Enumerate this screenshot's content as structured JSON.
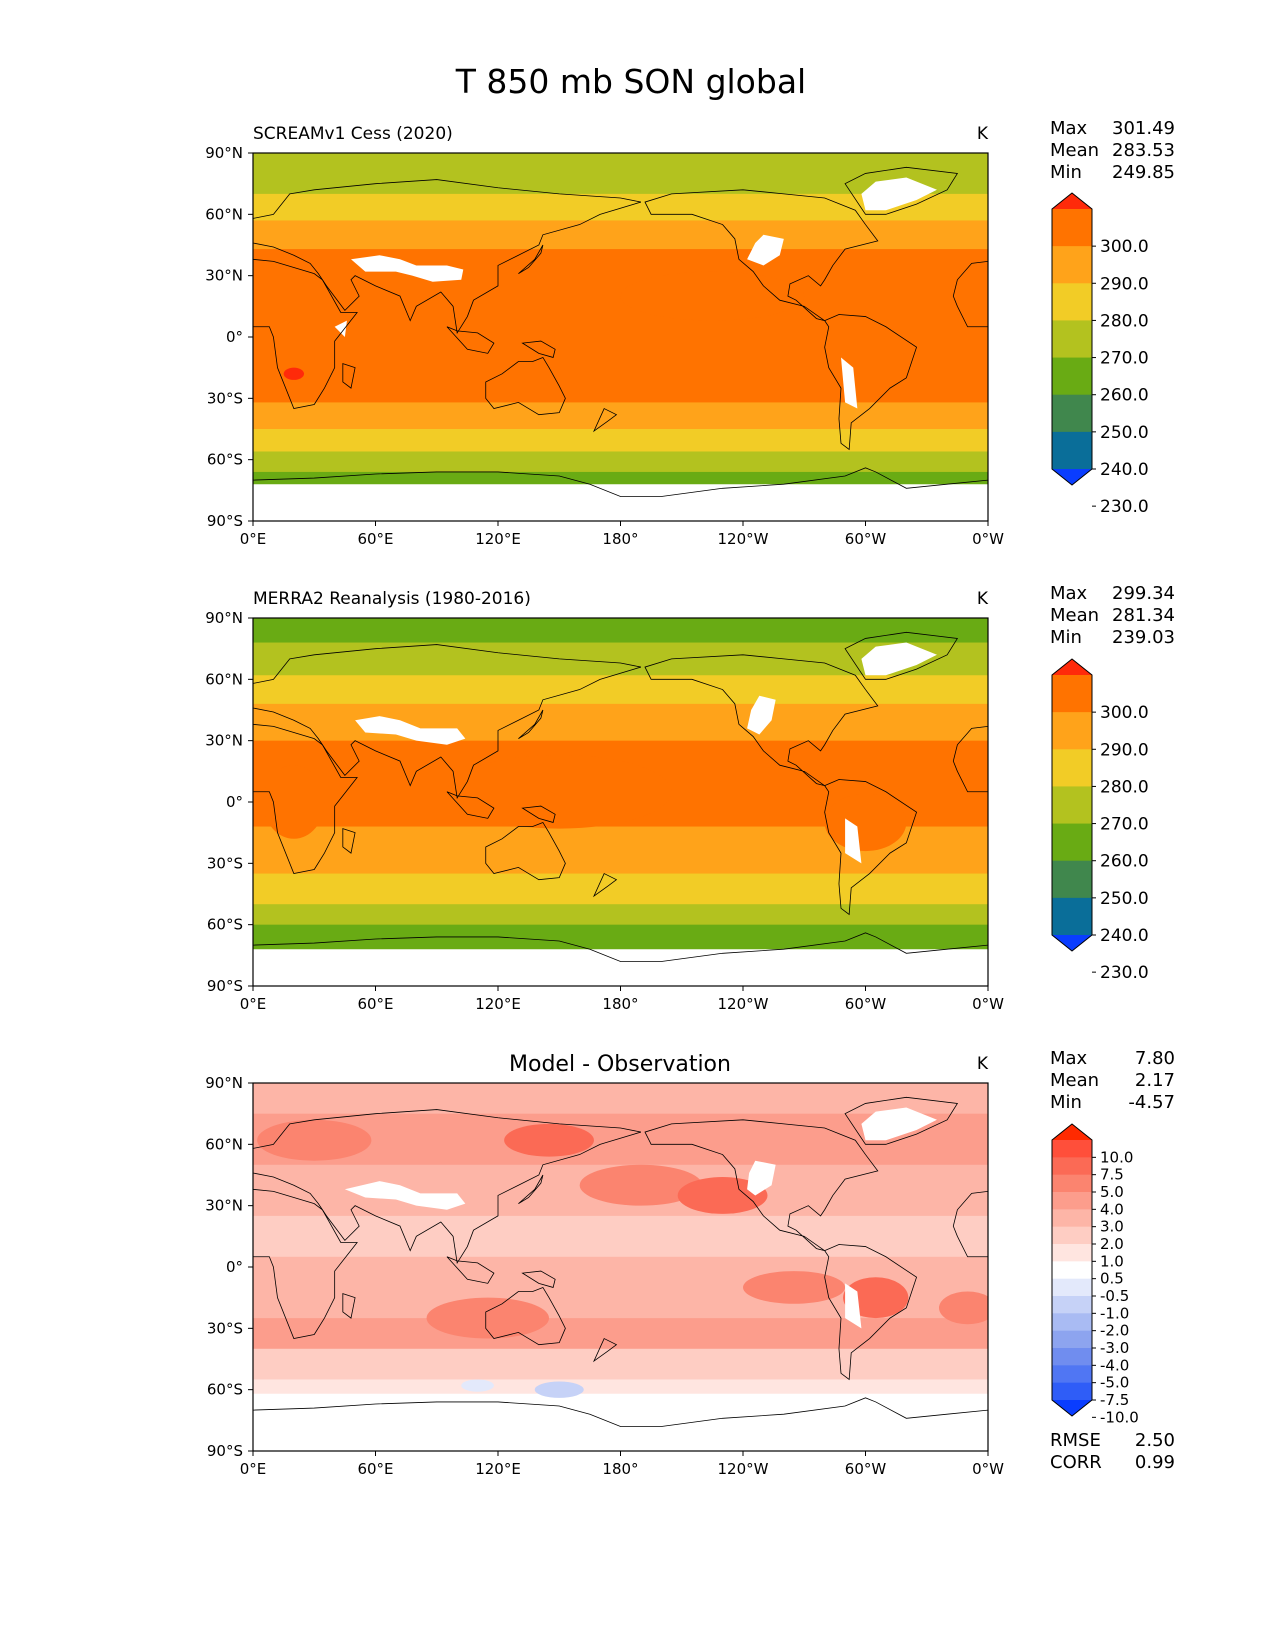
{
  "figure": {
    "title": "T 850 mb SON global"
  },
  "axes": {
    "lat_ticks": [
      "90°N",
      "60°N",
      "30°N",
      "0°",
      "30°S",
      "60°S",
      "90°S"
    ],
    "lon_ticks": [
      "0°E",
      "60°E",
      "120°E",
      "180°",
      "120°W",
      "60°W",
      "0°W"
    ]
  },
  "stat_labels": {
    "max": "Max",
    "mean": "Mean",
    "min": "Min",
    "rmse": "RMSE",
    "corr": "CORR"
  },
  "chart_data": [
    {
      "type": "heatmap",
      "title": "SCREAMv1 Cess (2020)",
      "units": "K",
      "stats": {
        "max": "301.49",
        "mean": "283.53",
        "min": "249.85"
      },
      "colorbar": {
        "labels": [
          "300.0",
          "290.0",
          "280.0",
          "270.0",
          "260.0",
          "250.0",
          "240.0",
          "230.0"
        ],
        "colors": [
          "#ff2a0a",
          "#ff7300",
          "#ffa31a",
          "#f2cc26",
          "#b3c21f",
          "#69ab14",
          "#40874d",
          "#0a6e99",
          "#0a3dff"
        ],
        "extend": "both"
      },
      "x_range": [
        0,
        360
      ],
      "y_range": [
        -90,
        90
      ]
    },
    {
      "type": "heatmap",
      "title": "MERRA2 Reanalysis (1980-2016)",
      "units": "K",
      "stats": {
        "max": "299.34",
        "mean": "281.34",
        "min": "239.03"
      },
      "colorbar": {
        "labels": [
          "300.0",
          "290.0",
          "280.0",
          "270.0",
          "260.0",
          "250.0",
          "240.0",
          "230.0"
        ],
        "colors": [
          "#ff2a0a",
          "#ff7300",
          "#ffa31a",
          "#f2cc26",
          "#b3c21f",
          "#69ab14",
          "#40874d",
          "#0a6e99",
          "#0a3dff"
        ],
        "extend": "both"
      },
      "x_range": [
        0,
        360
      ],
      "y_range": [
        -90,
        90
      ]
    },
    {
      "type": "heatmap",
      "title": "Model - Observation",
      "units": "K",
      "stats": {
        "max": "7.80",
        "mean": "2.17",
        "min": "-4.57",
        "rmse": "2.50",
        "corr": "0.99"
      },
      "colorbar": {
        "labels": [
          "10.0",
          "7.5",
          "5.0",
          "4.0",
          "3.0",
          "2.0",
          "1.0",
          "0.5",
          "-0.5",
          "-1.0",
          "-2.0",
          "-3.0",
          "-4.0",
          "-5.0",
          "-7.5",
          "-10.0"
        ],
        "colors": [
          "#ff2a00",
          "#ff4f3a",
          "#fb6a55",
          "#fb846f",
          "#fc9d8c",
          "#fdb5a7",
          "#fecdc3",
          "#ffe5e0",
          "#ffffff",
          "#e3e9fb",
          "#c6d2f7",
          "#a9bbf3",
          "#8da4ef",
          "#708def",
          "#5076f3",
          "#2f5df7",
          "#0a3dff"
        ],
        "extend": "both"
      },
      "x_range": [
        0,
        360
      ],
      "y_range": [
        -90,
        90
      ]
    }
  ]
}
